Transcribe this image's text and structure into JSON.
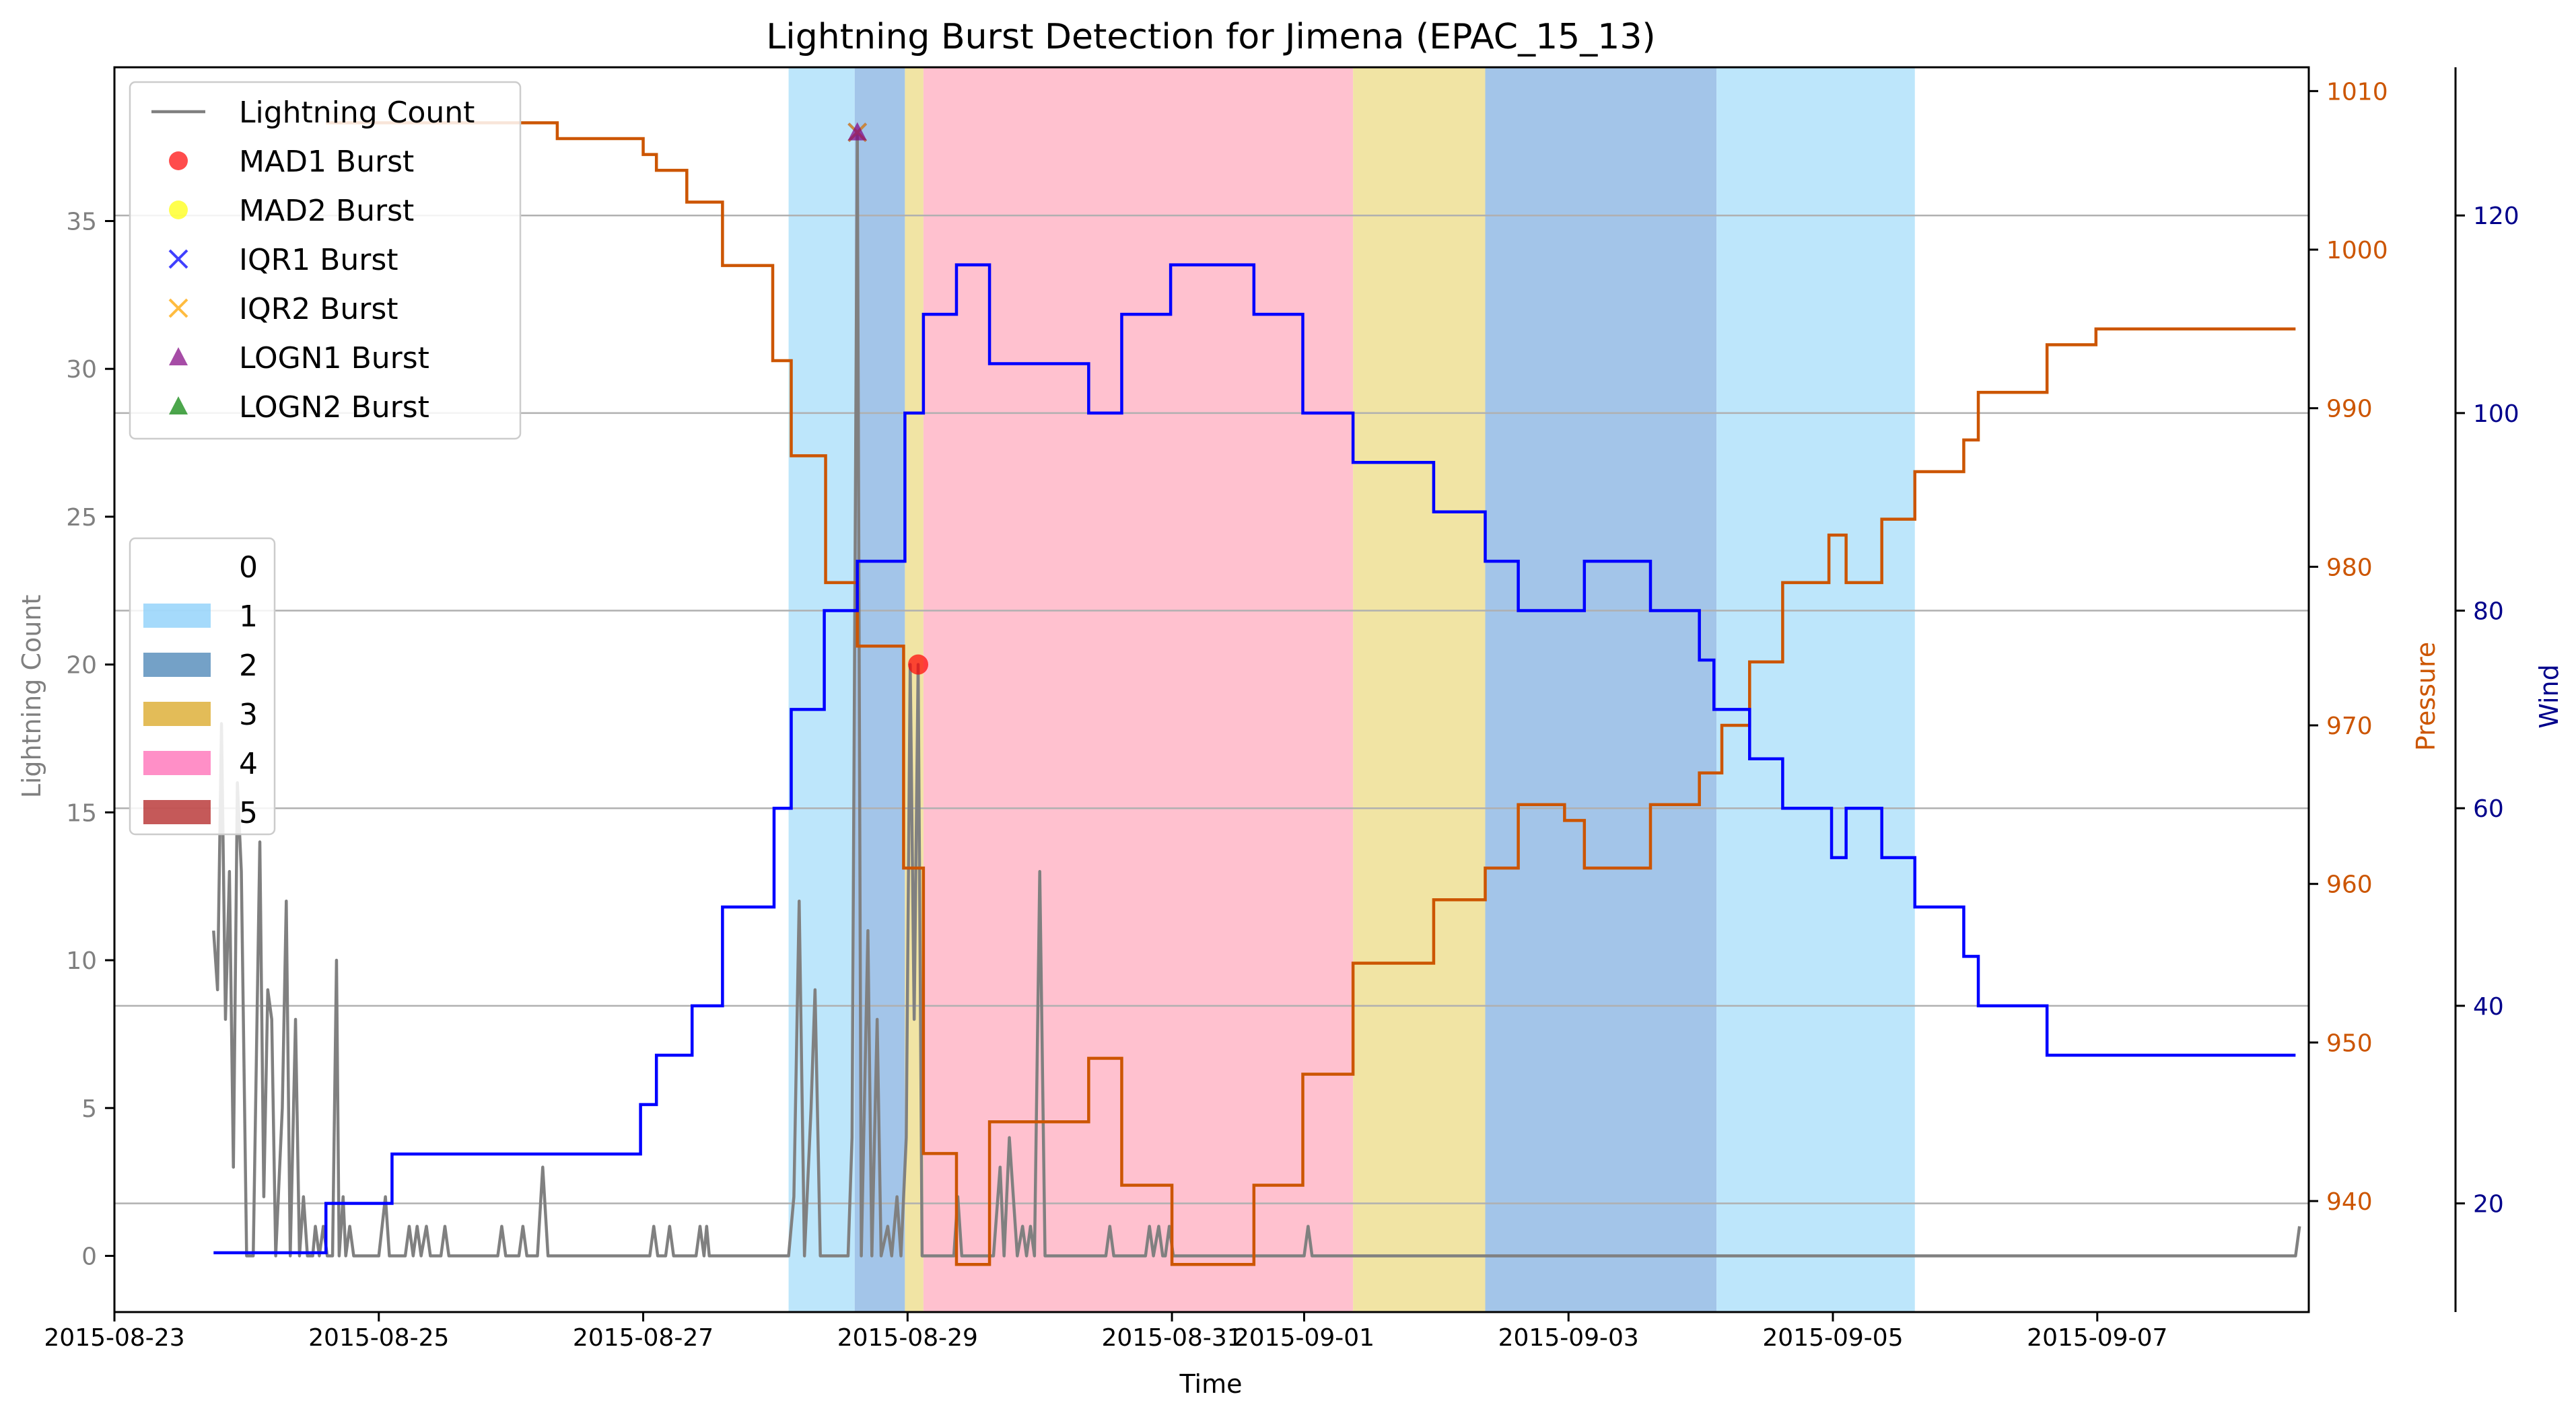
{
  "chart_data": {
    "type": "line",
    "title": "Lightning Burst Detection for Jimena (EPAC_15_13)",
    "xlabel": "Time",
    "ylabel_left": "Lightning Count",
    "ylabel_right_pressure": "Pressure",
    "ylabel_right_wind": "Wind",
    "x_ticks": [
      "2015-08-23",
      "2015-08-25",
      "2015-08-27",
      "2015-08-29",
      "2015-08-31",
      "2015-09-01",
      "2015-09-03",
      "2015-09-05",
      "2015-09-07"
    ],
    "x_tick_days": [
      0,
      2,
      4,
      6,
      8,
      9,
      11,
      13,
      15
    ],
    "xlim_days": [
      0,
      16.6
    ],
    "lightning": {
      "ylim": [
        -1.9,
        40.2
      ],
      "ticks": [
        0,
        5,
        10,
        15,
        20,
        25,
        30,
        35
      ],
      "color": "#808080",
      "points": [
        [
          0.75,
          11
        ],
        [
          0.78,
          9
        ],
        [
          0.81,
          18
        ],
        [
          0.84,
          8
        ],
        [
          0.87,
          13
        ],
        [
          0.9,
          3
        ],
        [
          0.93,
          16
        ],
        [
          0.96,
          13
        ],
        [
          1.0,
          0
        ],
        [
          1.05,
          0
        ],
        [
          1.1,
          14
        ],
        [
          1.13,
          2
        ],
        [
          1.16,
          9
        ],
        [
          1.19,
          8
        ],
        [
          1.22,
          0
        ],
        [
          1.27,
          5
        ],
        [
          1.3,
          12
        ],
        [
          1.33,
          0
        ],
        [
          1.37,
          8
        ],
        [
          1.4,
          0
        ],
        [
          1.43,
          2
        ],
        [
          1.46,
          0
        ],
        [
          1.5,
          0
        ],
        [
          1.52,
          1
        ],
        [
          1.55,
          0
        ],
        [
          1.58,
          1
        ],
        [
          1.61,
          0
        ],
        [
          1.65,
          0
        ],
        [
          1.68,
          10
        ],
        [
          1.7,
          0
        ],
        [
          1.73,
          2
        ],
        [
          1.75,
          0
        ],
        [
          1.78,
          1
        ],
        [
          1.81,
          0
        ],
        [
          2.0,
          0
        ],
        [
          2.05,
          2
        ],
        [
          2.08,
          0
        ],
        [
          2.2,
          0
        ],
        [
          2.23,
          1
        ],
        [
          2.26,
          0
        ],
        [
          2.29,
          1
        ],
        [
          2.32,
          0
        ],
        [
          2.36,
          1
        ],
        [
          2.39,
          0
        ],
        [
          2.47,
          0
        ],
        [
          2.5,
          1
        ],
        [
          2.53,
          0
        ],
        [
          2.9,
          0
        ],
        [
          2.93,
          1
        ],
        [
          2.96,
          0
        ],
        [
          3.06,
          0
        ],
        [
          3.09,
          1
        ],
        [
          3.12,
          0
        ],
        [
          3.2,
          0
        ],
        [
          3.24,
          3
        ],
        [
          3.28,
          0
        ],
        [
          4.05,
          0
        ],
        [
          4.08,
          1
        ],
        [
          4.11,
          0
        ],
        [
          4.17,
          0
        ],
        [
          4.2,
          1
        ],
        [
          4.23,
          0
        ],
        [
          4.4,
          0
        ],
        [
          4.43,
          1
        ],
        [
          4.46,
          0
        ],
        [
          4.48,
          1
        ],
        [
          4.5,
          0
        ],
        [
          5.1,
          0
        ],
        [
          5.14,
          2
        ],
        [
          5.18,
          12
        ],
        [
          5.22,
          0
        ],
        [
          5.27,
          5
        ],
        [
          5.3,
          9
        ],
        [
          5.34,
          0
        ],
        [
          5.55,
          0
        ],
        [
          5.58,
          4
        ],
        [
          5.62,
          38
        ],
        [
          5.65,
          0
        ],
        [
          5.7,
          11
        ],
        [
          5.73,
          0
        ],
        [
          5.77,
          8
        ],
        [
          5.8,
          0
        ],
        [
          5.85,
          1
        ],
        [
          5.88,
          0
        ],
        [
          5.92,
          2
        ],
        [
          5.95,
          0
        ],
        [
          5.99,
          4
        ],
        [
          6.02,
          20
        ],
        [
          6.05,
          8
        ],
        [
          6.08,
          20
        ],
        [
          6.11,
          0
        ],
        [
          6.35,
          0
        ],
        [
          6.38,
          2
        ],
        [
          6.41,
          0
        ],
        [
          6.65,
          0
        ],
        [
          6.7,
          3
        ],
        [
          6.73,
          0
        ],
        [
          6.77,
          4
        ],
        [
          6.8,
          2
        ],
        [
          6.83,
          0
        ],
        [
          6.87,
          1
        ],
        [
          6.9,
          0
        ],
        [
          6.93,
          1
        ],
        [
          6.96,
          0
        ],
        [
          7.0,
          13
        ],
        [
          7.04,
          0
        ],
        [
          7.5,
          0
        ],
        [
          7.53,
          1
        ],
        [
          7.56,
          0
        ],
        [
          7.8,
          0
        ],
        [
          7.83,
          1
        ],
        [
          7.86,
          0
        ],
        [
          7.9,
          1
        ],
        [
          7.93,
          0
        ],
        [
          7.95,
          0
        ],
        [
          7.98,
          1
        ],
        [
          8.01,
          0
        ],
        [
          9.0,
          0
        ],
        [
          9.03,
          1
        ],
        [
          9.06,
          0
        ],
        [
          16.5,
          0
        ],
        [
          16.53,
          1
        ]
      ]
    },
    "pressure": {
      "ylim": [
        933,
        1011.5
      ],
      "ticks": [
        940,
        950,
        960,
        970,
        980,
        990,
        1000,
        1010
      ],
      "color": "#cc5500",
      "steps": [
        [
          1.6,
          1008
        ],
        [
          3.35,
          1007
        ],
        [
          4.0,
          1006
        ],
        [
          4.1,
          1005
        ],
        [
          4.33,
          1003
        ],
        [
          4.6,
          999
        ],
        [
          4.98,
          993
        ],
        [
          5.12,
          987
        ],
        [
          5.38,
          979
        ],
        [
          5.62,
          975
        ],
        [
          5.97,
          961
        ],
        [
          6.12,
          943
        ],
        [
          6.37,
          936
        ],
        [
          6.62,
          945
        ],
        [
          7.37,
          949
        ],
        [
          7.62,
          941
        ],
        [
          8.0,
          936
        ],
        [
          8.62,
          941
        ],
        [
          8.99,
          948
        ],
        [
          9.37,
          955
        ],
        [
          9.98,
          959
        ],
        [
          10.37,
          961
        ],
        [
          10.62,
          965
        ],
        [
          10.97,
          964
        ],
        [
          11.12,
          961
        ],
        [
          11.62,
          965
        ],
        [
          11.99,
          967
        ],
        [
          12.16,
          970
        ],
        [
          12.37,
          974
        ],
        [
          12.62,
          979
        ],
        [
          12.97,
          982
        ],
        [
          13.1,
          979
        ],
        [
          13.37,
          983
        ],
        [
          13.62,
          986
        ],
        [
          13.99,
          988
        ],
        [
          14.1,
          991
        ],
        [
          14.62,
          994
        ],
        [
          14.99,
          995
        ],
        [
          16.5,
          995
        ]
      ]
    },
    "wind": {
      "ylim": [
        9,
        135
      ],
      "ticks": [
        20,
        40,
        60,
        80,
        100,
        120
      ],
      "color": "#0000ff",
      "steps": [
        [
          0.75,
          15
        ],
        [
          1.6,
          20
        ],
        [
          2.1,
          25
        ],
        [
          3.98,
          30
        ],
        [
          4.1,
          35
        ],
        [
          4.37,
          40
        ],
        [
          4.6,
          50
        ],
        [
          4.99,
          60
        ],
        [
          5.12,
          70
        ],
        [
          5.37,
          80
        ],
        [
          5.62,
          85
        ],
        [
          5.98,
          100
        ],
        [
          6.12,
          110
        ],
        [
          6.37,
          115
        ],
        [
          6.62,
          105
        ],
        [
          7.37,
          100
        ],
        [
          7.62,
          110
        ],
        [
          7.99,
          115
        ],
        [
          8.62,
          110
        ],
        [
          8.99,
          100
        ],
        [
          9.37,
          95
        ],
        [
          9.98,
          90
        ],
        [
          10.37,
          85
        ],
        [
          10.62,
          80
        ],
        [
          11.12,
          85
        ],
        [
          11.62,
          80
        ],
        [
          11.99,
          75
        ],
        [
          12.1,
          70
        ],
        [
          12.37,
          65
        ],
        [
          12.62,
          60
        ],
        [
          12.99,
          55
        ],
        [
          13.1,
          60
        ],
        [
          13.37,
          55
        ],
        [
          13.62,
          50
        ],
        [
          13.99,
          45
        ],
        [
          14.1,
          40
        ],
        [
          14.62,
          35
        ],
        [
          16.5,
          35
        ]
      ]
    },
    "categories_bands": [
      {
        "start": 5.1,
        "end": 5.6,
        "category": 1
      },
      {
        "start": 5.6,
        "end": 5.98,
        "category": 2
      },
      {
        "start": 5.98,
        "end": 6.12,
        "category": 3
      },
      {
        "start": 6.12,
        "end": 9.37,
        "category": 4
      },
      {
        "start": 9.37,
        "end": 10.37,
        "category": 3
      },
      {
        "start": 10.37,
        "end": 12.12,
        "category": 2
      },
      {
        "start": 12.12,
        "end": 13.62,
        "category": 1
      }
    ],
    "category_colors": {
      "1": "#87CEFA",
      "2": "#4682B4",
      "3": "#DAA520",
      "4": "#FF69B4",
      "5": "#B22222"
    },
    "band_colors": {
      "1": "#bde6fb",
      "2": "#a3c5e9",
      "3": "#f1e4a4",
      "4": "#ffc1cf"
    },
    "bursts": [
      {
        "type": "MAD1",
        "day": 6.08,
        "value": 20,
        "color": "#ff0000"
      },
      {
        "type": "IQR1",
        "day": 5.62,
        "value": 38,
        "color": "#0000ff"
      },
      {
        "type": "IQR2",
        "day": 5.62,
        "value": 38,
        "color": "#ffa500"
      },
      {
        "type": "LOGN1",
        "day": 5.62,
        "value": 38,
        "color": "#800080"
      }
    ],
    "legend_series": [
      {
        "label": "Lightning Count",
        "marker": "line",
        "color": "#808080"
      },
      {
        "label": "MAD1 Burst",
        "marker": "circle",
        "color": "#ff0000"
      },
      {
        "label": "MAD2 Burst",
        "marker": "circle",
        "color": "#ffff00"
      },
      {
        "label": "IQR1 Burst",
        "marker": "x",
        "color": "#0000ff"
      },
      {
        "label": "IQR2 Burst",
        "marker": "x",
        "color": "#ffa500"
      },
      {
        "label": "LOGN1 Burst",
        "marker": "triangle",
        "color": "#800080"
      },
      {
        "label": "LOGN2 Burst",
        "marker": "triangle",
        "color": "#008000"
      }
    ],
    "legend_categories": [
      {
        "label": "0",
        "color": null
      },
      {
        "label": "1",
        "color": "#87CEFA"
      },
      {
        "label": "2",
        "color": "#4682B4"
      },
      {
        "label": "3",
        "color": "#DAA520"
      },
      {
        "label": "4",
        "color": "#FF69B4"
      },
      {
        "label": "5",
        "color": "#B22222"
      }
    ],
    "grid": "horizontal (wind axis)",
    "legend_placement": "top-left"
  }
}
